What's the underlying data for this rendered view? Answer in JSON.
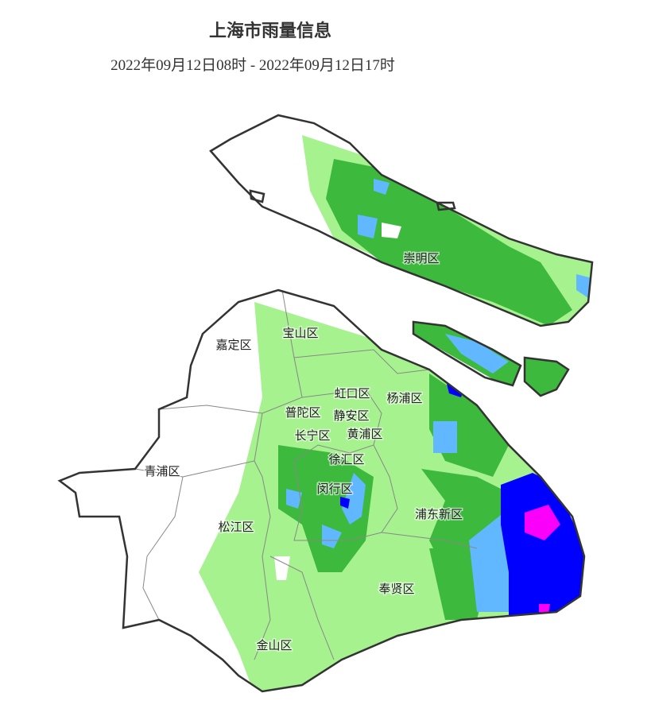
{
  "header": {
    "title": "上海市雨量信息",
    "subtitle": "2022年09月12日08时 - 2022年09月12日17时"
  },
  "districts": [
    {
      "label": "崇明区"
    },
    {
      "label": "宝山区"
    },
    {
      "label": "嘉定区"
    },
    {
      "label": "虹口区"
    },
    {
      "label": "杨浦区"
    },
    {
      "label": "普陀区"
    },
    {
      "label": "静安区"
    },
    {
      "label": "长宁区"
    },
    {
      "label": "黄浦区"
    },
    {
      "label": "徐汇区"
    },
    {
      "label": "青浦区"
    },
    {
      "label": "闵行区"
    },
    {
      "label": "浦东新区"
    },
    {
      "label": "松江区"
    },
    {
      "label": "奉贤区"
    },
    {
      "label": "金山区"
    }
  ]
}
